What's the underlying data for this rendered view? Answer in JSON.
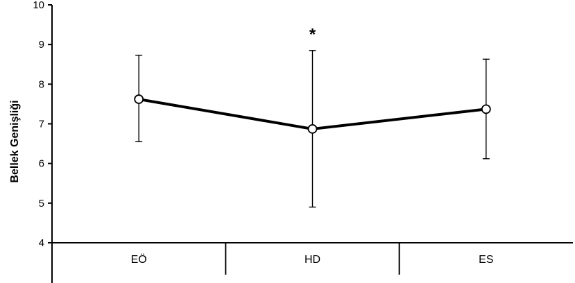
{
  "chart_data": {
    "type": "line",
    "categories": [
      "EÖ",
      "HD",
      "ES"
    ],
    "series": [
      {
        "values": [
          7.62,
          6.87,
          7.37
        ],
        "error_upper": [
          8.73,
          8.85,
          8.63
        ],
        "error_lower": [
          6.55,
          4.9,
          6.12
        ]
      }
    ],
    "ylabel": "Bellek Genişliği",
    "xlabel": "",
    "ylim": [
      4,
      10
    ],
    "yticks": [
      "4",
      "5",
      "6",
      "7",
      "8",
      "9",
      "10"
    ],
    "grid": false,
    "annotations": [
      {
        "category": "HD",
        "text": "*"
      }
    ],
    "colors": {
      "line": "#000000",
      "marker_fill": "#ffffff",
      "marker_stroke": "#000000"
    }
  }
}
